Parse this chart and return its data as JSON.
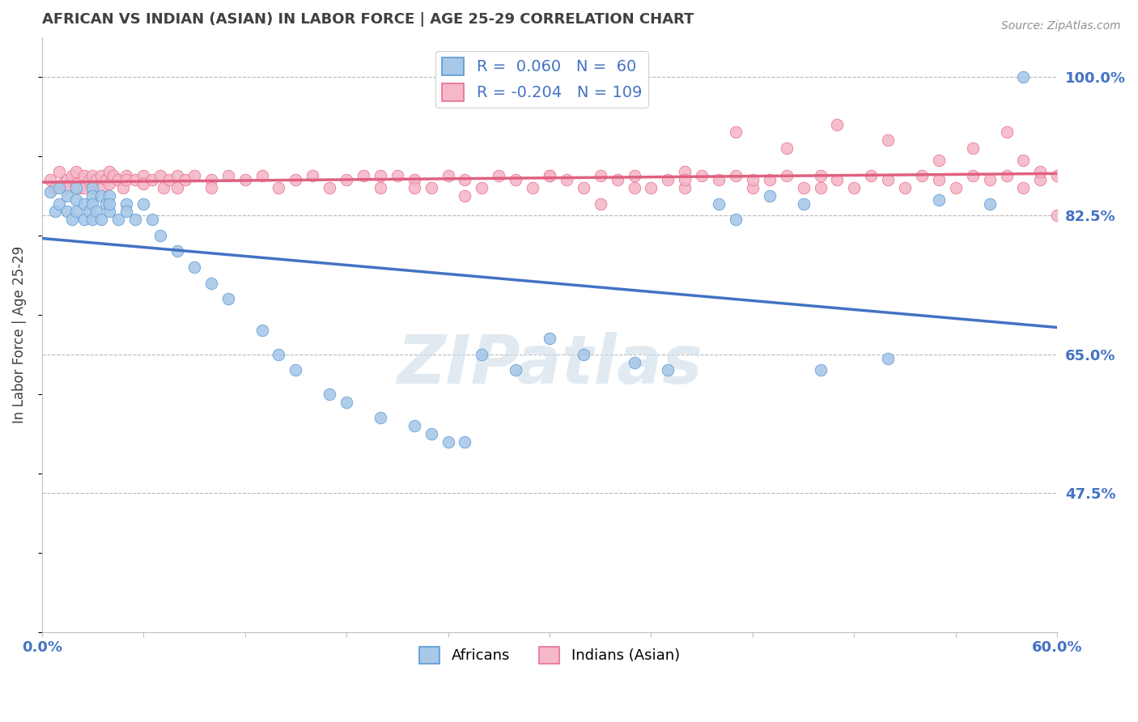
{
  "title": "AFRICAN VS INDIAN (ASIAN) IN LABOR FORCE | AGE 25-29 CORRELATION CHART",
  "source": "Source: ZipAtlas.com",
  "ylabel": "In Labor Force | Age 25-29",
  "xlim": [
    0.0,
    0.6
  ],
  "ylim": [
    0.3,
    1.05
  ],
  "xticks": [
    0.0,
    0.06,
    0.12,
    0.18,
    0.24,
    0.3,
    0.36,
    0.42,
    0.48,
    0.54,
    0.6
  ],
  "xticklabels": [
    "0.0%",
    "",
    "",
    "",
    "",
    "",
    "",
    "",
    "",
    "",
    "60.0%"
  ],
  "yticks_right": [
    0.475,
    0.65,
    0.825,
    1.0
  ],
  "yticklabels_right": [
    "47.5%",
    "65.0%",
    "82.5%",
    "100.0%"
  ],
  "R_blue": 0.06,
  "N_blue": 60,
  "R_pink": -0.204,
  "N_pink": 109,
  "blue_color": "#a8c8e8",
  "blue_edge_color": "#5b9bd5",
  "pink_color": "#f4b8c8",
  "pink_edge_color": "#e87090",
  "blue_line_color": "#4472c4",
  "pink_line_color": "#e06080",
  "legend_text_color": "#4472c4",
  "title_color": "#404040",
  "background_color": "#ffffff",
  "grid_color": "#b8b8b8",
  "blue_x": [
    0.005,
    0.008,
    0.01,
    0.01,
    0.015,
    0.015,
    0.018,
    0.02,
    0.02,
    0.02,
    0.025,
    0.025,
    0.028,
    0.03,
    0.03,
    0.03,
    0.03,
    0.032,
    0.035,
    0.035,
    0.038,
    0.04,
    0.04,
    0.04,
    0.045,
    0.05,
    0.05,
    0.055,
    0.06,
    0.065,
    0.07,
    0.08,
    0.09,
    0.1,
    0.11,
    0.13,
    0.14,
    0.15,
    0.17,
    0.18,
    0.2,
    0.22,
    0.23,
    0.24,
    0.25,
    0.26,
    0.28,
    0.3,
    0.32,
    0.35,
    0.37,
    0.4,
    0.41,
    0.43,
    0.45,
    0.46,
    0.5,
    0.53,
    0.56,
    0.58
  ],
  "blue_y": [
    0.855,
    0.83,
    0.86,
    0.84,
    0.85,
    0.83,
    0.82,
    0.86,
    0.845,
    0.83,
    0.84,
    0.82,
    0.83,
    0.86,
    0.85,
    0.84,
    0.82,
    0.83,
    0.85,
    0.82,
    0.84,
    0.85,
    0.83,
    0.84,
    0.82,
    0.84,
    0.83,
    0.82,
    0.84,
    0.82,
    0.8,
    0.78,
    0.76,
    0.74,
    0.72,
    0.68,
    0.65,
    0.63,
    0.6,
    0.59,
    0.57,
    0.56,
    0.55,
    0.54,
    0.54,
    0.65,
    0.63,
    0.67,
    0.65,
    0.64,
    0.63,
    0.84,
    0.82,
    0.85,
    0.84,
    0.63,
    0.645,
    0.845,
    0.84,
    1.0
  ],
  "pink_x": [
    0.005,
    0.008,
    0.01,
    0.012,
    0.015,
    0.015,
    0.018,
    0.02,
    0.02,
    0.022,
    0.025,
    0.025,
    0.028,
    0.03,
    0.03,
    0.032,
    0.035,
    0.035,
    0.038,
    0.04,
    0.04,
    0.042,
    0.045,
    0.048,
    0.05,
    0.05,
    0.055,
    0.06,
    0.06,
    0.065,
    0.07,
    0.072,
    0.075,
    0.08,
    0.08,
    0.085,
    0.09,
    0.1,
    0.1,
    0.11,
    0.12,
    0.13,
    0.14,
    0.15,
    0.16,
    0.17,
    0.18,
    0.19,
    0.2,
    0.21,
    0.22,
    0.23,
    0.24,
    0.25,
    0.26,
    0.27,
    0.28,
    0.29,
    0.3,
    0.31,
    0.32,
    0.33,
    0.34,
    0.35,
    0.36,
    0.37,
    0.38,
    0.39,
    0.4,
    0.41,
    0.42,
    0.43,
    0.44,
    0.45,
    0.46,
    0.47,
    0.48,
    0.49,
    0.5,
    0.51,
    0.52,
    0.53,
    0.54,
    0.55,
    0.56,
    0.57,
    0.58,
    0.59,
    0.6,
    0.41,
    0.44,
    0.47,
    0.5,
    0.53,
    0.55,
    0.57,
    0.58,
    0.59,
    0.6,
    0.38,
    0.42,
    0.46,
    0.3,
    0.33,
    0.35,
    0.38,
    0.2,
    0.22,
    0.25
  ],
  "pink_y": [
    0.87,
    0.86,
    0.88,
    0.865,
    0.87,
    0.86,
    0.875,
    0.88,
    0.865,
    0.86,
    0.875,
    0.86,
    0.87,
    0.875,
    0.86,
    0.87,
    0.875,
    0.86,
    0.87,
    0.88,
    0.865,
    0.875,
    0.87,
    0.86,
    0.875,
    0.87,
    0.87,
    0.875,
    0.865,
    0.87,
    0.875,
    0.86,
    0.87,
    0.875,
    0.86,
    0.87,
    0.875,
    0.87,
    0.86,
    0.875,
    0.87,
    0.875,
    0.86,
    0.87,
    0.875,
    0.86,
    0.87,
    0.875,
    0.86,
    0.875,
    0.87,
    0.86,
    0.875,
    0.87,
    0.86,
    0.875,
    0.87,
    0.86,
    0.875,
    0.87,
    0.86,
    0.875,
    0.87,
    0.875,
    0.86,
    0.87,
    0.86,
    0.875,
    0.87,
    0.875,
    0.86,
    0.87,
    0.875,
    0.86,
    0.875,
    0.87,
    0.86,
    0.875,
    0.87,
    0.86,
    0.875,
    0.87,
    0.86,
    0.875,
    0.87,
    0.875,
    0.86,
    0.87,
    0.875,
    0.93,
    0.91,
    0.94,
    0.92,
    0.895,
    0.91,
    0.93,
    0.895,
    0.88,
    0.825,
    0.88,
    0.87,
    0.86,
    0.875,
    0.84,
    0.86,
    0.87,
    0.875,
    0.86,
    0.85
  ]
}
